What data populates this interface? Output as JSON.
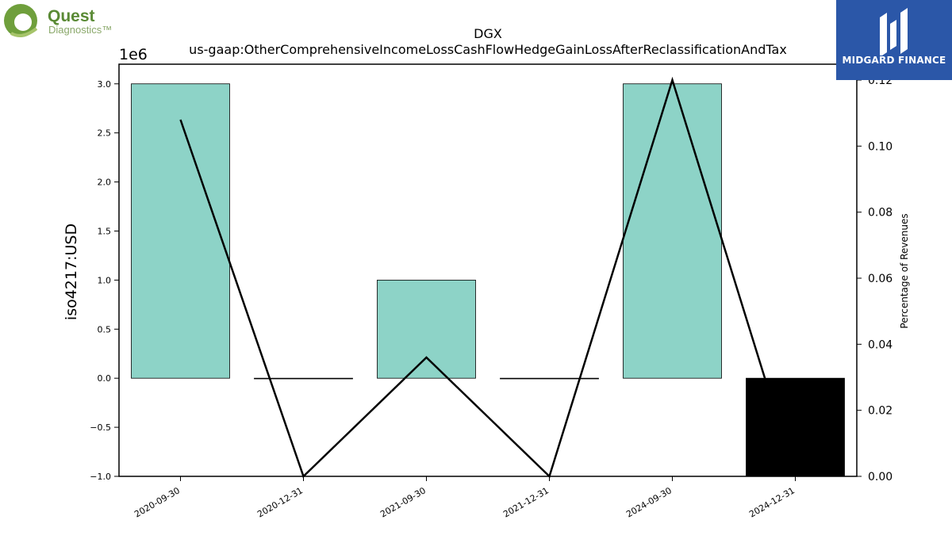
{
  "logos": {
    "left": {
      "name": "Quest",
      "sub": "Diagnostics™",
      "color": "#5a8a35"
    },
    "right": {
      "name": "MIDGARD FINANCE",
      "bg": "#2b57a8"
    }
  },
  "chart_data": {
    "type": "bar",
    "title": "DGX",
    "subtitle": "us-gaap:OtherComprehensiveIncomeLossCashFlowHedgeGainLossAfterReclassificationAndTax",
    "ylabel": "iso4217:USD",
    "y_offset_label": "1e6",
    "y2label": "Percentage of Revenues",
    "categories": [
      "2020-09-30",
      "2020-12-31",
      "2021-09-30",
      "2021-12-31",
      "2024-09-30",
      "2024-12-31"
    ],
    "series": [
      {
        "values": [
          3000000,
          0,
          1000000,
          0,
          3000000,
          -1000000
        ],
        "colors": [
          "#8dd3c7",
          "#8dd3c7",
          "#8dd3c7",
          "#8dd3c7",
          "#8dd3c7",
          "#000000"
        ]
      },
      {
        "axis": "right",
        "values": [
          0.108,
          0.0,
          0.036,
          0.0,
          0.12,
          0.0
        ],
        "color": "#000000"
      }
    ],
    "ylim": [
      -1000000,
      3200000
    ],
    "y2lim": [
      0,
      0.1248
    ],
    "yticks": [
      -1000000,
      -500000,
      0,
      500000,
      1000000,
      1500000,
      2000000,
      2500000,
      3000000
    ],
    "ytick_labels": [
      "−1.0",
      "−0.5",
      "0.0",
      "0.5",
      "1.0",
      "1.5",
      "2.0",
      "2.5",
      "3.0"
    ],
    "y2ticks": [
      0,
      0.02,
      0.04,
      0.06,
      0.08,
      0.1,
      0.12
    ],
    "y2tick_labels": [
      "0.00",
      "0.02",
      "0.04",
      "0.06",
      "0.08",
      "0.10",
      "0.12"
    ],
    "grid": false
  }
}
